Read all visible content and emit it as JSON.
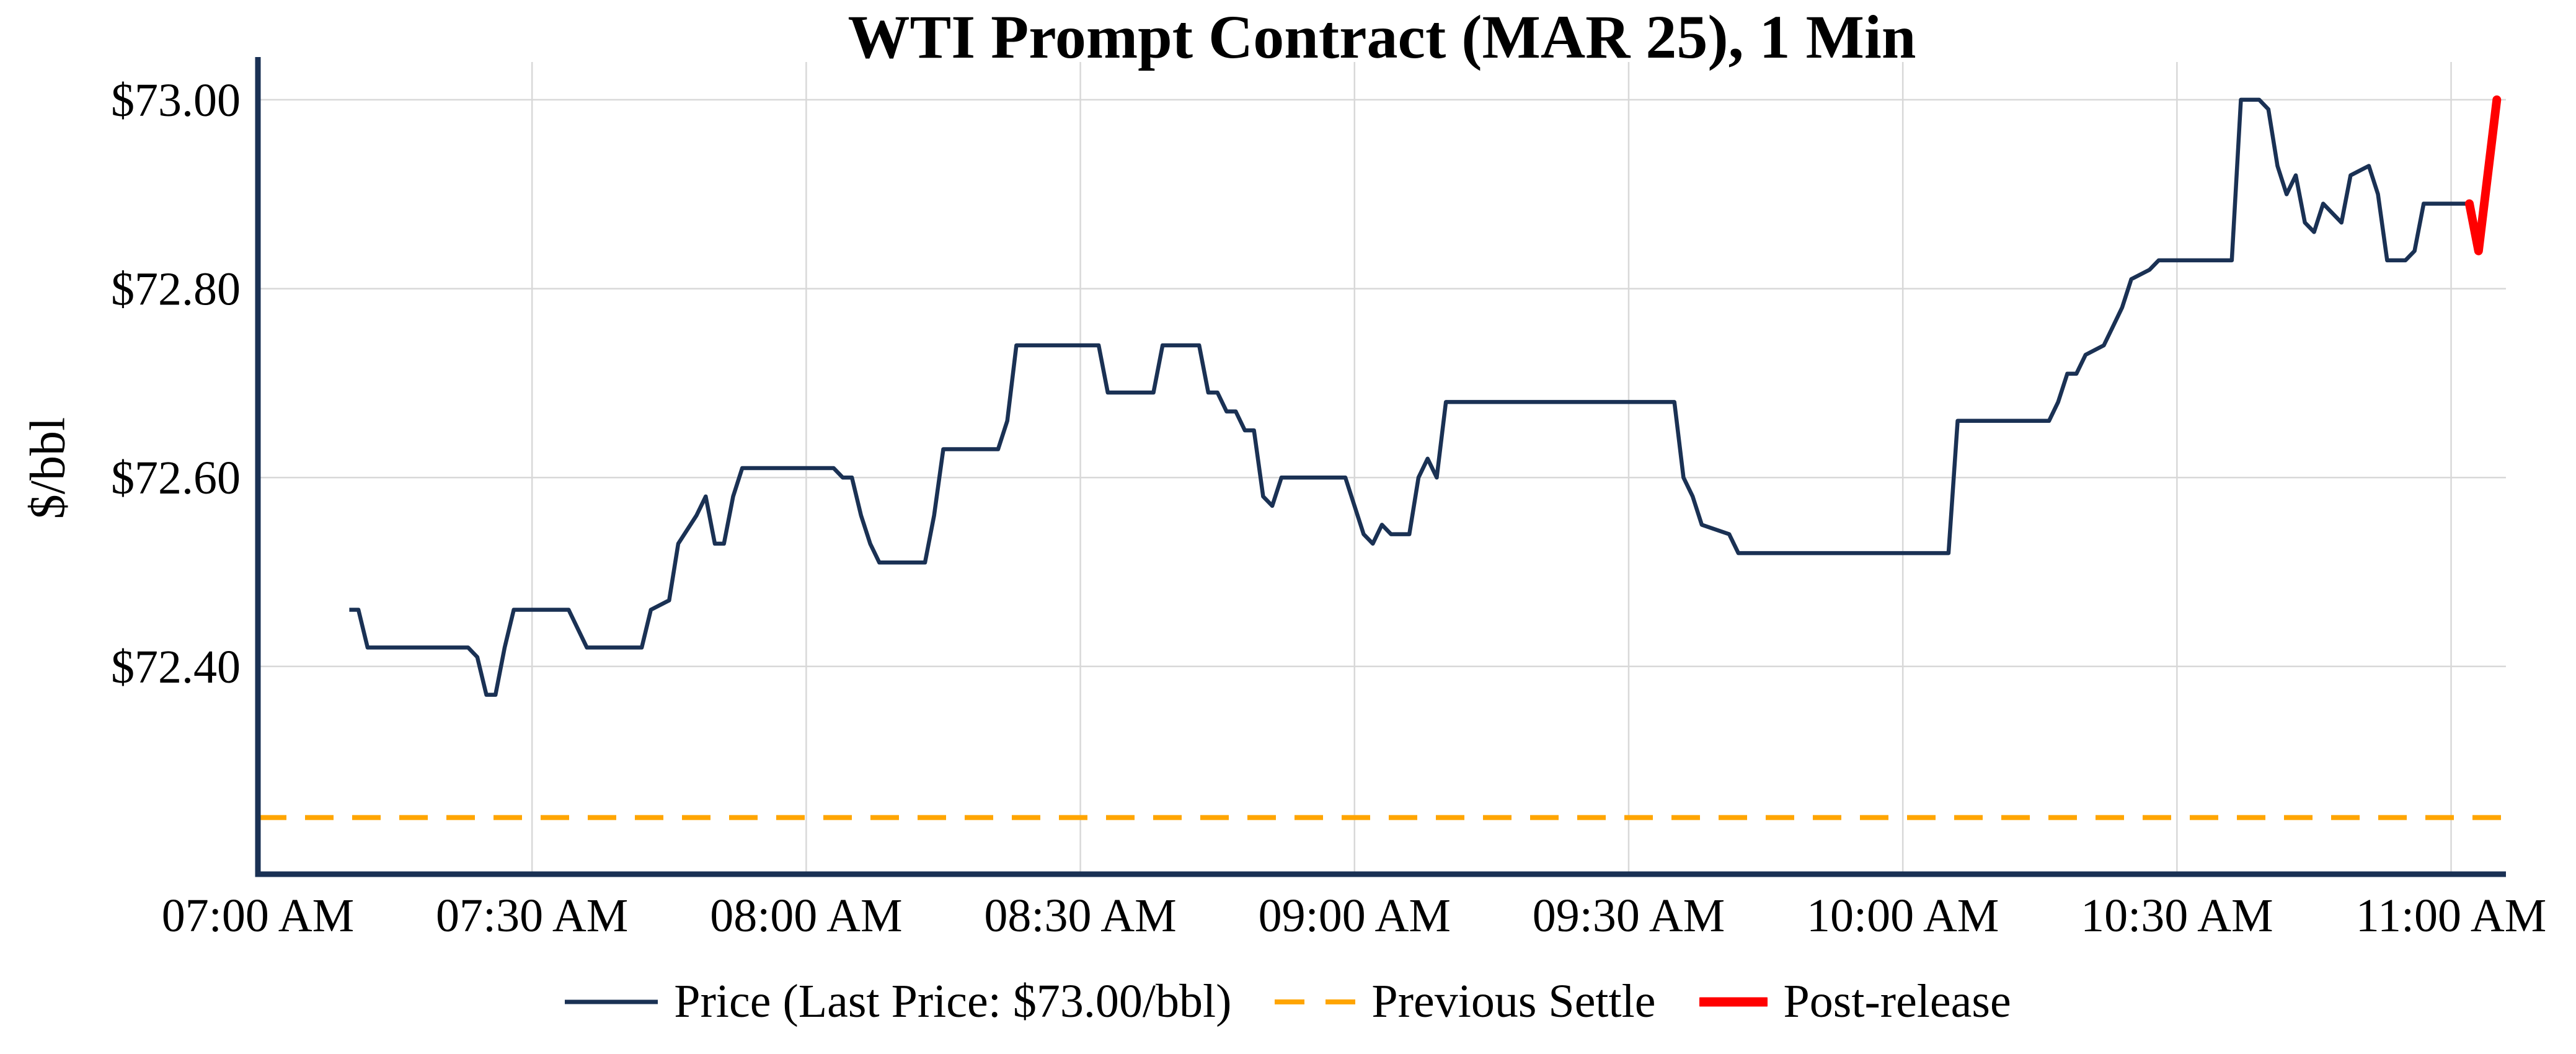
{
  "colors": {
    "price": "#1a3154",
    "settle": "#FFA500",
    "post": "#FF0000",
    "grid": "#D8D8D8",
    "axis": "#1a3154",
    "text": "#000000",
    "background": "#FFFFFF"
  },
  "chart_data": {
    "type": "line",
    "title": "WTI Prompt Contract (MAR 25), 1 Min",
    "xlabel": "",
    "ylabel": "$/bbl",
    "grid": true,
    "legend_position": "bottom-center",
    "x_unit": "minutes after 07:00 AM",
    "x_range": [
      0,
      246
    ],
    "y_range": [
      72.18,
      73.04
    ],
    "last_price": 73.0,
    "previous_settle": 72.24,
    "x_ticks": [
      {
        "t": 0,
        "label": "07:00 AM"
      },
      {
        "t": 30,
        "label": "07:30 AM"
      },
      {
        "t": 60,
        "label": "08:00 AM"
      },
      {
        "t": 90,
        "label": "08:30 AM"
      },
      {
        "t": 120,
        "label": "09:00 AM"
      },
      {
        "t": 150,
        "label": "09:30 AM"
      },
      {
        "t": 180,
        "label": "10:00 AM"
      },
      {
        "t": 210,
        "label": "10:30 AM"
      },
      {
        "t": 240,
        "label": "11:00 AM"
      }
    ],
    "y_ticks": [
      {
        "v": 72.4,
        "label": "$72.40"
      },
      {
        "v": 72.6,
        "label": "$72.60"
      },
      {
        "v": 72.8,
        "label": "$72.80"
      },
      {
        "v": 73.0,
        "label": "$73.00"
      }
    ],
    "series": [
      {
        "role": "price",
        "name": "Price (Last Price: $73.00/bbl)",
        "style": "solid",
        "points": [
          [
            10,
            72.46
          ],
          [
            11,
            72.46
          ],
          [
            12,
            72.42
          ],
          [
            23,
            72.42
          ],
          [
            24,
            72.41
          ],
          [
            25,
            72.37
          ],
          [
            26,
            72.37
          ],
          [
            27,
            72.42
          ],
          [
            28,
            72.46
          ],
          [
            34,
            72.46
          ],
          [
            35,
            72.44
          ],
          [
            36,
            72.42
          ],
          [
            42,
            72.42
          ],
          [
            43,
            72.46
          ],
          [
            45,
            72.47
          ],
          [
            46,
            72.53
          ],
          [
            48,
            72.56
          ],
          [
            49,
            72.58
          ],
          [
            50,
            72.53
          ],
          [
            51,
            72.53
          ],
          [
            52,
            72.58
          ],
          [
            53,
            72.61
          ],
          [
            63,
            72.61
          ],
          [
            64,
            72.6
          ],
          [
            65,
            72.6
          ],
          [
            66,
            72.56
          ],
          [
            67,
            72.53
          ],
          [
            68,
            72.51
          ],
          [
            73,
            72.51
          ],
          [
            74,
            72.56
          ],
          [
            75,
            72.63
          ],
          [
            81,
            72.63
          ],
          [
            82,
            72.66
          ],
          [
            83,
            72.74
          ],
          [
            92,
            72.74
          ],
          [
            93,
            72.69
          ],
          [
            98,
            72.69
          ],
          [
            99,
            72.74
          ],
          [
            103,
            72.74
          ],
          [
            104,
            72.69
          ],
          [
            105,
            72.69
          ],
          [
            106,
            72.67
          ],
          [
            107,
            72.67
          ],
          [
            108,
            72.65
          ],
          [
            109,
            72.65
          ],
          [
            110,
            72.58
          ],
          [
            111,
            72.57
          ],
          [
            112,
            72.6
          ],
          [
            119,
            72.6
          ],
          [
            121,
            72.54
          ],
          [
            122,
            72.53
          ],
          [
            123,
            72.55
          ],
          [
            124,
            72.54
          ],
          [
            126,
            72.54
          ],
          [
            127,
            72.6
          ],
          [
            128,
            72.62
          ],
          [
            129,
            72.6
          ],
          [
            130,
            72.68
          ],
          [
            155,
            72.68
          ],
          [
            156,
            72.6
          ],
          [
            157,
            72.58
          ],
          [
            158,
            72.55
          ],
          [
            161,
            72.54
          ],
          [
            162,
            72.52
          ],
          [
            185,
            72.52
          ],
          [
            186,
            72.66
          ],
          [
            196,
            72.66
          ],
          [
            197,
            72.68
          ],
          [
            198,
            72.71
          ],
          [
            199,
            72.71
          ],
          [
            200,
            72.73
          ],
          [
            202,
            72.74
          ],
          [
            203,
            72.76
          ],
          [
            204,
            72.78
          ],
          [
            205,
            72.81
          ],
          [
            207,
            72.82
          ],
          [
            208,
            72.83
          ],
          [
            216,
            72.83
          ],
          [
            217,
            73.0
          ],
          [
            219,
            73.0
          ],
          [
            220,
            72.99
          ],
          [
            221,
            72.93
          ],
          [
            222,
            72.9
          ],
          [
            223,
            72.92
          ],
          [
            224,
            72.87
          ],
          [
            225,
            72.86
          ],
          [
            226,
            72.89
          ],
          [
            228,
            72.87
          ],
          [
            229,
            72.92
          ],
          [
            231,
            72.93
          ],
          [
            232,
            72.9
          ],
          [
            233,
            72.83
          ],
          [
            235,
            72.83
          ],
          [
            236,
            72.84
          ],
          [
            237,
            72.89
          ],
          [
            242,
            72.89
          ]
        ]
      },
      {
        "role": "settle",
        "name": "Previous Settle",
        "style": "dashed",
        "value": 72.24
      },
      {
        "role": "post",
        "name": "Post-release",
        "style": "solid-thick",
        "points": [
          [
            242,
            72.89
          ],
          [
            243,
            72.84
          ],
          [
            245,
            73.0
          ]
        ]
      }
    ]
  }
}
